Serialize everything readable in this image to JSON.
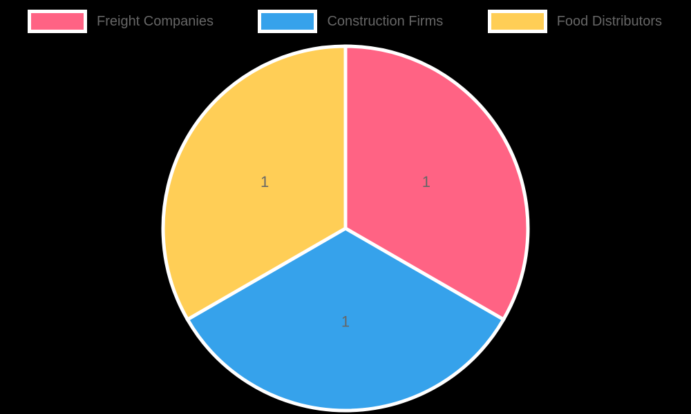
{
  "chart_data": {
    "type": "pie",
    "title": "",
    "categories": [
      "Freight Companies",
      "Construction Firms",
      "Food Distributors"
    ],
    "values": [
      1,
      1,
      1
    ],
    "data_labels": [
      "1",
      "1",
      "1"
    ],
    "colors": [
      "#FF6384",
      "#36A2EB",
      "#FFCE56"
    ],
    "legend_position": "top",
    "start_angle_deg": -90,
    "direction": "clockwise"
  },
  "legend": {
    "items": [
      {
        "label": "Freight Companies",
        "color": "#FF6384"
      },
      {
        "label": "Construction Firms",
        "color": "#36A2EB"
      },
      {
        "label": "Food Distributors",
        "color": "#FFCE56"
      }
    ]
  },
  "styles": {
    "background": "#000000",
    "slice_border_color": "#FFFFFF",
    "swatch_border_color": "#FFFFFF",
    "label_color": "#666666",
    "legend_text_color": "#666666"
  }
}
